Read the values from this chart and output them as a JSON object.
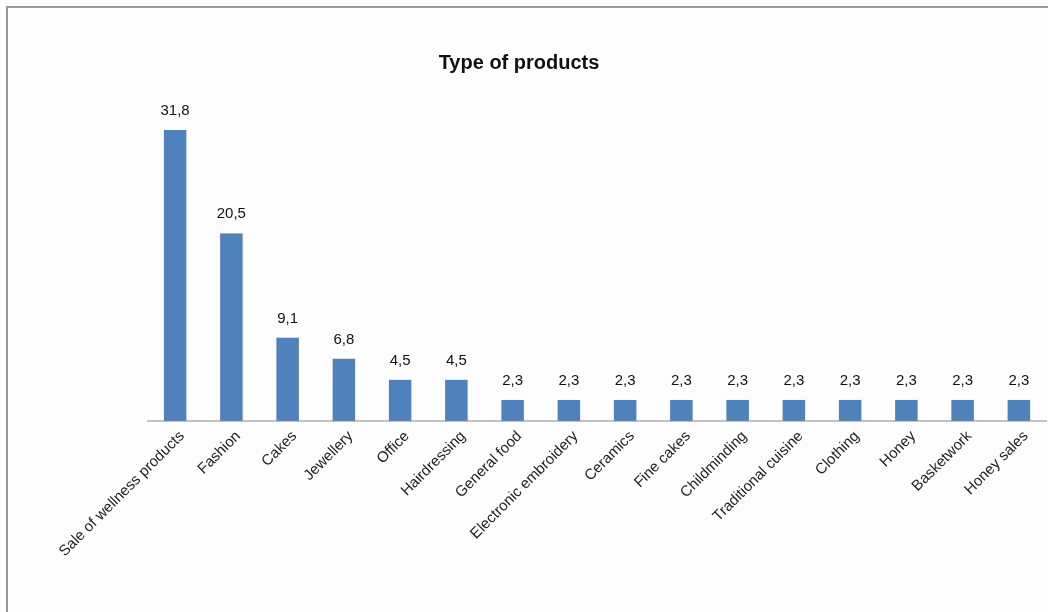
{
  "chart_data": {
    "type": "bar",
    "title": "Type of products",
    "categories": [
      "Sale of wellness products",
      "Fashion",
      "Cakes",
      "Jewellery",
      "Office",
      "Hairdressing",
      "General food",
      "Electronic embroidery",
      "Ceramics",
      "Fine cakes",
      "Childminding",
      "Traditional cuisine",
      "Clothing",
      "Honey",
      "Basketwork",
      "Honey sales"
    ],
    "values": [
      31.8,
      20.5,
      9.1,
      6.8,
      4.5,
      4.5,
      2.3,
      2.3,
      2.3,
      2.3,
      2.3,
      2.3,
      2.3,
      2.3,
      2.3,
      2.3
    ],
    "value_labels": [
      "31,8",
      "20,5",
      "9,1",
      "6,8",
      "4,5",
      "4,5",
      "2,3",
      "2,3",
      "2,3",
      "2,3",
      "2,3",
      "2,3",
      "2,3",
      "2,3",
      "2,3",
      "2,3"
    ],
    "color": "#4f81bd"
  }
}
